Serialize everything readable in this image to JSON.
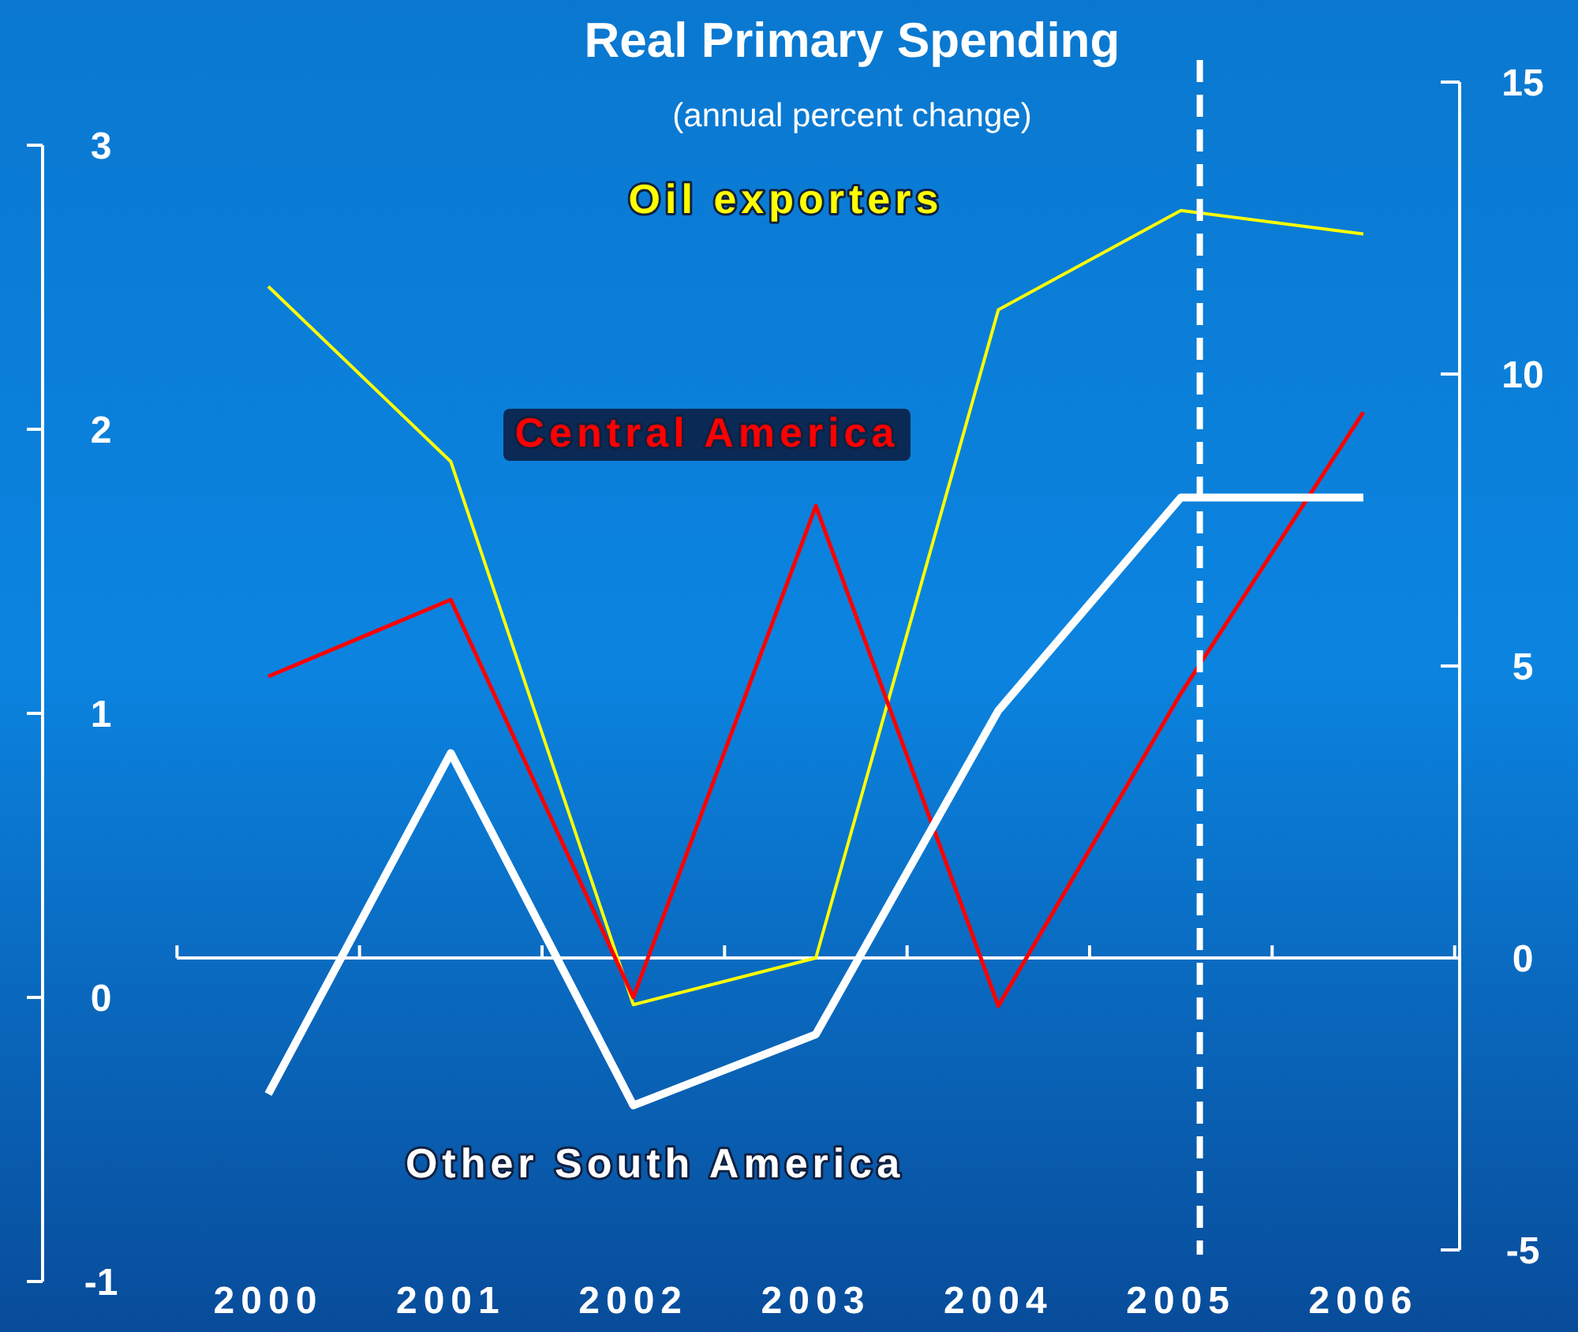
{
  "chart_data": {
    "type": "line",
    "title": "Real Primary Spending",
    "subtitle": "(annual percent change)",
    "categories": [
      "2000",
      "2001",
      "2002",
      "2003",
      "2004",
      "2005",
      "2006"
    ],
    "series": [
      {
        "name": "Oil exporters",
        "color": "#ffff00",
        "axis": "y2",
        "values": [
          11.5,
          8.5,
          -0.8,
          0,
          11.1,
          12.8,
          12.4
        ]
      },
      {
        "name": "Central America",
        "color": "#ff0000",
        "axis": "y",
        "values": [
          1.13,
          1.4,
          0,
          1.73,
          -0.03,
          1.07,
          2.06
        ]
      },
      {
        "name": "Other South America",
        "color": "#ffffff",
        "axis": "y",
        "values": [
          -0.34,
          0.86,
          -0.38,
          -0.13,
          1.01,
          1.76,
          1.76
        ]
      }
    ],
    "ylim": [
      -1,
      3
    ],
    "yticks": [
      -1,
      0,
      1,
      2,
      3
    ],
    "y2lim": [
      -5,
      15
    ],
    "y2ticks": [
      -5,
      0,
      5,
      10,
      15
    ],
    "ref_lines": [
      {
        "axis": "x",
        "value": "2005",
        "color": "#ffffff",
        "line_style": "dashed"
      }
    ],
    "marker": "none",
    "line_style": "solid"
  }
}
